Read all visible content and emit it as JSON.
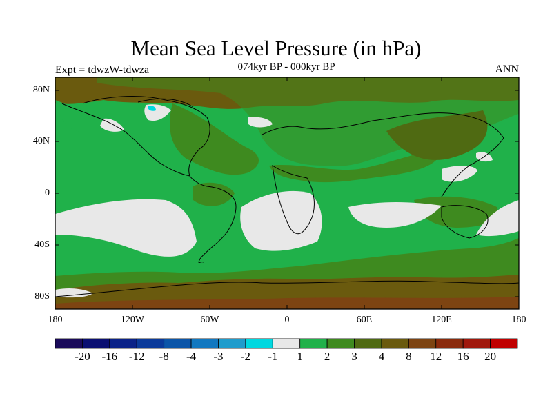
{
  "title": "Mean Sea Level Pressure (in hPa)",
  "experiment": "Expt = tdwzW-tdwza",
  "period": "074kyr BP - 000kyr BP",
  "season": "ANN",
  "map": {
    "lat_labels": [
      "80N",
      "40N",
      "0",
      "40S",
      "80S"
    ],
    "lon_labels": [
      "180",
      "120W",
      "60W",
      "0",
      "60E",
      "120E",
      "180"
    ]
  },
  "colorbar": {
    "colors": [
      "#1a0a5a",
      "#0a0f72",
      "#0a2288",
      "#0a3a9a",
      "#0b55a8",
      "#1178c0",
      "#1f9ccc",
      "#00d8e0",
      "#e8e8e8",
      "#20b14a",
      "#3e8a1f",
      "#4f6a12",
      "#6a5a0e",
      "#7d4412",
      "#8a2a0c",
      "#a0180c",
      "#c00000"
    ],
    "labels": [
      "-20",
      "-16",
      "-12",
      "-8",
      "-4",
      "-3",
      "-2",
      "-1",
      "1",
      "2",
      "3",
      "4",
      "8",
      "12",
      "16",
      "20"
    ]
  }
}
